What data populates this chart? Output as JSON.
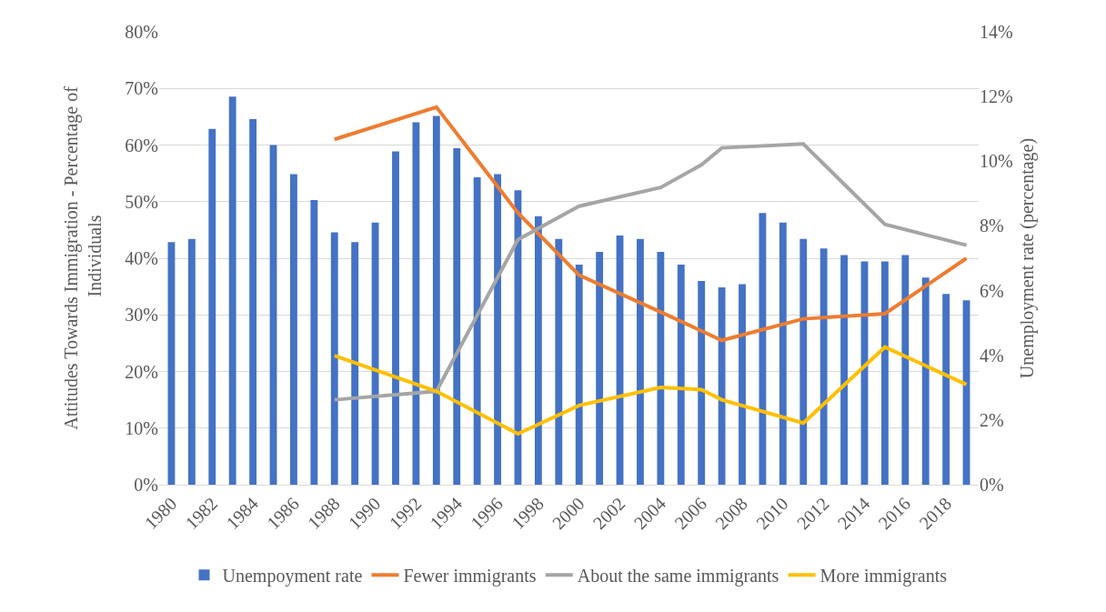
{
  "chart_data": {
    "type": "line",
    "ylabel": "Attitudes Towards Immigration - Percentage of Individuals",
    "y2label": "Unemployment rate (percentage)",
    "xlim": [
      1979.4,
      2019.6
    ],
    "xticks": [
      1980,
      1982,
      1984,
      1986,
      1988,
      1990,
      1992,
      1994,
      1996,
      1998,
      2000,
      2002,
      2004,
      2006,
      2008,
      2010,
      2012,
      2014,
      2016,
      2018
    ],
    "ylim": [
      0,
      80
    ],
    "yticks": [
      {
        "value": 0,
        "label": "0%"
      },
      {
        "value": 10,
        "label": "10%"
      },
      {
        "value": 20,
        "label": "20%"
      },
      {
        "value": 30,
        "label": "30%"
      },
      {
        "value": 40,
        "label": "40%"
      },
      {
        "value": 50,
        "label": "50%"
      },
      {
        "value": 60,
        "label": "60%"
      },
      {
        "value": 70,
        "label": "70%"
      },
      {
        "value": 80,
        "label": "80%"
      }
    ],
    "y2lim": [
      0,
      14
    ],
    "y2ticks": [
      {
        "value": 0,
        "label": "0%"
      },
      {
        "value": 2,
        "label": "2%"
      },
      {
        "value": 4,
        "label": "4%"
      },
      {
        "value": 6,
        "label": "6%"
      },
      {
        "value": 8,
        "label": "8%"
      },
      {
        "value": 10,
        "label": "10%"
      },
      {
        "value": 12,
        "label": "12%"
      },
      {
        "value": 14,
        "label": "14%"
      }
    ],
    "grid": "y",
    "legend": "bottom",
    "marker": "none",
    "line_style": "solid",
    "series": [
      {
        "name": "Unempoyment rate",
        "type": "bar",
        "axis": "y2",
        "color": "#4472c4",
        "x": [
          1980,
          1981,
          1982,
          1983,
          1984,
          1985,
          1986,
          1987,
          1988,
          1989,
          1990,
          1991,
          1992,
          1993,
          1994,
          1995,
          1996,
          1997,
          1998,
          1999,
          2000,
          2001,
          2002,
          2003,
          2004,
          2005,
          2006,
          2007,
          2008,
          2009,
          2010,
          2011,
          2012,
          2013,
          2014,
          2015,
          2016,
          2017,
          2018,
          2019
        ],
        "values": [
          7.5,
          7.6,
          11.0,
          12.0,
          11.3,
          10.5,
          9.6,
          8.8,
          7.8,
          7.5,
          8.1,
          10.3,
          11.2,
          11.4,
          10.4,
          9.5,
          9.6,
          9.1,
          8.3,
          7.6,
          6.8,
          7.2,
          7.7,
          7.6,
          7.2,
          6.8,
          6.3,
          6.1,
          6.2,
          8.4,
          8.1,
          7.6,
          7.3,
          7.1,
          6.9,
          6.9,
          7.1,
          6.4,
          5.9,
          5.7
        ]
      },
      {
        "name": "Fewer immigrants",
        "color": "#ed7d31",
        "x": [
          1988,
          1993,
          1997,
          2000,
          2004,
          2007,
          2011,
          2015,
          2019
        ],
        "values": [
          61,
          66.7,
          48,
          37,
          30.5,
          25.5,
          29.3,
          30.2,
          40
        ]
      },
      {
        "name": "About the same immigrants",
        "color": "#a5a5a5",
        "x": [
          1988,
          1993,
          1997,
          2000,
          2004,
          2006,
          2007,
          2011,
          2015,
          2019
        ],
        "values": [
          15,
          16.5,
          43.3,
          49.2,
          52.5,
          56.5,
          59.5,
          60.2,
          46,
          42.3
        ]
      },
      {
        "name": "More immigrants",
        "color": "#ffc000",
        "x": [
          1988,
          1993,
          1997,
          2000,
          2004,
          2006,
          2007,
          2011,
          2015,
          2019
        ],
        "values": [
          22.8,
          16.5,
          9,
          14,
          17.2,
          16.8,
          15,
          10.9,
          24.3,
          17.7
        ]
      }
    ]
  }
}
